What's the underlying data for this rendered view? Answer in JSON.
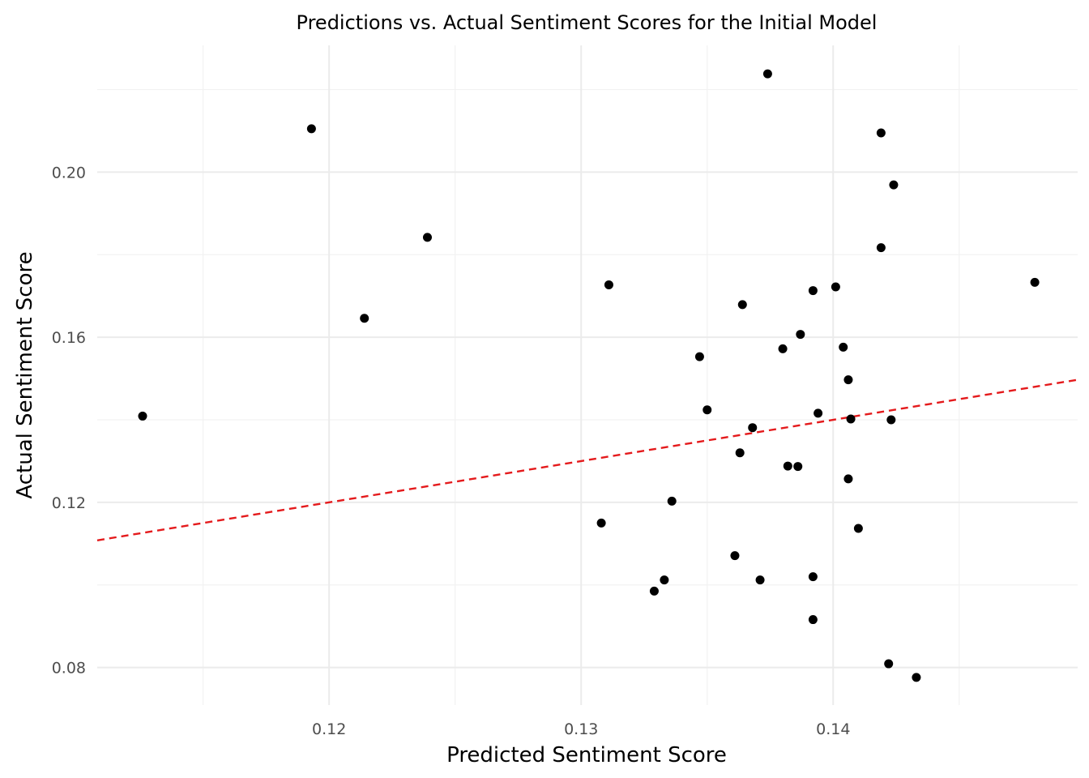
{
  "chart_data": {
    "type": "scatter",
    "title": "Predictions vs. Actual Sentiment Scores for the Initial Model",
    "xlabel": "Predicted Sentiment Score",
    "ylabel": "Actual Sentiment Score",
    "xlim": [
      0.1108,
      0.1497
    ],
    "ylim": [
      0.0709,
      0.2307
    ],
    "x_ticks": [
      0.12,
      0.13,
      0.14
    ],
    "x_tick_labels": [
      "0.12",
      "0.13",
      "0.14"
    ],
    "y_ticks": [
      0.08,
      0.12,
      0.16,
      0.2
    ],
    "y_tick_labels": [
      "0.08",
      "0.12",
      "0.16",
      "0.20"
    ],
    "grid": true,
    "points": [
      {
        "x": 0.1126,
        "y": 0.1409
      },
      {
        "x": 0.1193,
        "y": 0.2105
      },
      {
        "x": 0.1214,
        "y": 0.1646
      },
      {
        "x": 0.1239,
        "y": 0.1842
      },
      {
        "x": 0.1308,
        "y": 0.115
      },
      {
        "x": 0.1311,
        "y": 0.1727
      },
      {
        "x": 0.1329,
        "y": 0.0985
      },
      {
        "x": 0.1333,
        "y": 0.1012
      },
      {
        "x": 0.1336,
        "y": 0.1203
      },
      {
        "x": 0.1347,
        "y": 0.1553
      },
      {
        "x": 0.135,
        "y": 0.1424
      },
      {
        "x": 0.1361,
        "y": 0.1071
      },
      {
        "x": 0.1363,
        "y": 0.132
      },
      {
        "x": 0.1364,
        "y": 0.1679
      },
      {
        "x": 0.1368,
        "y": 0.1381
      },
      {
        "x": 0.1371,
        "y": 0.1012
      },
      {
        "x": 0.1374,
        "y": 0.2238
      },
      {
        "x": 0.138,
        "y": 0.1572
      },
      {
        "x": 0.1382,
        "y": 0.1288
      },
      {
        "x": 0.1386,
        "y": 0.1287
      },
      {
        "x": 0.1387,
        "y": 0.1607
      },
      {
        "x": 0.1392,
        "y": 0.0916
      },
      {
        "x": 0.1392,
        "y": 0.102
      },
      {
        "x": 0.1392,
        "y": 0.1713
      },
      {
        "x": 0.1394,
        "y": 0.1416
      },
      {
        "x": 0.1401,
        "y": 0.1722
      },
      {
        "x": 0.1404,
        "y": 0.1576
      },
      {
        "x": 0.1406,
        "y": 0.1257
      },
      {
        "x": 0.1406,
        "y": 0.1497
      },
      {
        "x": 0.1407,
        "y": 0.1402
      },
      {
        "x": 0.141,
        "y": 0.1137
      },
      {
        "x": 0.1419,
        "y": 0.2095
      },
      {
        "x": 0.1419,
        "y": 0.1817
      },
      {
        "x": 0.1422,
        "y": 0.0809
      },
      {
        "x": 0.1423,
        "y": 0.14
      },
      {
        "x": 0.1424,
        "y": 0.1969
      },
      {
        "x": 0.1433,
        "y": 0.0776
      },
      {
        "x": 0.148,
        "y": 0.1733
      }
    ],
    "reference_line": {
      "from": [
        0.1108,
        0.1108
      ],
      "to": [
        0.1497,
        0.1497
      ],
      "color": "#e41a1c",
      "style": "dashed"
    },
    "colors": {
      "points": "#000000",
      "grid_major": "#ebebeb",
      "grid_minor": "#f2f2f2",
      "background": "#ffffff"
    }
  }
}
